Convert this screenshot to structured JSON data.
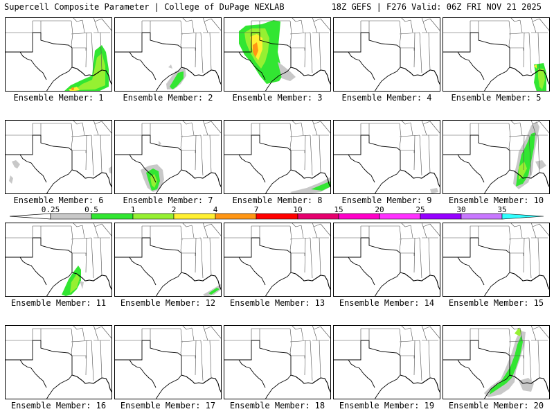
{
  "header": {
    "title": "Supercell Composite Parameter | College of DuPage NEXLAB",
    "run_info": "18Z GEFS | F276 Valid: 06Z FRI NOV 21 2025"
  },
  "colorbar": {
    "labels": [
      "0.25",
      "0.5",
      "1",
      "2",
      "4",
      "7",
      "10",
      "15",
      "20",
      "25",
      "30",
      "35"
    ],
    "colors": [
      "#c8c8c8",
      "#32e632",
      "#96f032",
      "#fff032",
      "#ff9614",
      "#ff0000",
      "#e6006e",
      "#ff00c8",
      "#ff32ff",
      "#9600ff",
      "#c878ff",
      "#32ffff"
    ]
  },
  "map_colors": {
    "land_outline": "#000000",
    "states": "#505050",
    "gray": "#c8c8c8",
    "green": "#32e632",
    "lightgreen": "#96f032",
    "yellow": "#fff032",
    "orange": "#ff9614"
  },
  "members": [
    {
      "label": "Ensemble Member: 1"
    },
    {
      "label": "Ensemble Member: 2"
    },
    {
      "label": "Ensemble Member: 3"
    },
    {
      "label": "Ensemble Member: 4"
    },
    {
      "label": "Ensemble Member: 5"
    },
    {
      "label": "Ensemble Member: 6"
    },
    {
      "label": "Ensemble Member: 7"
    },
    {
      "label": "Ensemble Member: 8"
    },
    {
      "label": "Ensemble Member: 9"
    },
    {
      "label": "Ensemble Member: 10"
    },
    {
      "label": "Ensemble Member: 11"
    },
    {
      "label": "Ensemble Member: 12"
    },
    {
      "label": "Ensemble Member: 13"
    },
    {
      "label": "Ensemble Member: 14"
    },
    {
      "label": "Ensemble Member: 15"
    },
    {
      "label": "Ensemble Member: 16"
    },
    {
      "label": "Ensemble Member: 17"
    },
    {
      "label": "Ensemble Member: 18"
    },
    {
      "label": "Ensemble Member: 19"
    },
    {
      "label": "Ensemble Member: 20"
    }
  ]
}
